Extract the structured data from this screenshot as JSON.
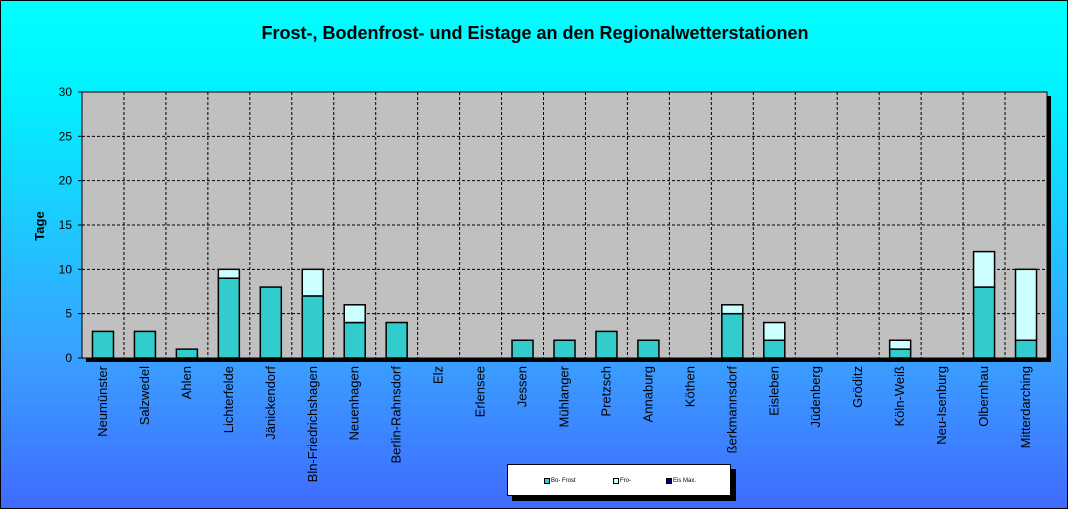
{
  "chart_data": {
    "type": "bar",
    "stacked": true,
    "title": "Frost-, Bodenfrost- und Eistage an den Regionalwetterstationen",
    "ylabel": "Tage",
    "xlabel": "",
    "ylim": [
      0,
      30
    ],
    "yticks": [
      "0",
      "5",
      "10",
      "15",
      "20",
      "25",
      "30"
    ],
    "grid": true,
    "legend_position": "bottom-center",
    "categories": [
      "Neumünster",
      "Salzwedel",
      "Ahlen",
      "Lichterfelde",
      "Jänickendorf",
      "Bln-Friedrichshagen",
      "Neuenhagen",
      "Berlin-Rahnsdorf",
      "Elz",
      "Erlensee",
      "Jessen",
      "Mühlanger",
      "Pretzsch",
      "Annaburg",
      "Köthen",
      "ßerkmannsdorf",
      "Eisleben",
      "Jüdenberg",
      "Gröditz",
      "Köln-Weiß",
      "Neu-Isenburg",
      "Olbernhau",
      "Mitterdarching"
    ],
    "series": [
      {
        "name": "Bo- Frost",
        "color": "#33cccc",
        "values": [
          3,
          3,
          1,
          9,
          8,
          7,
          4,
          4,
          0,
          0,
          2,
          2,
          3,
          2,
          0,
          5,
          2,
          0,
          0,
          1,
          0,
          8,
          2
        ]
      },
      {
        "name": "Fro-",
        "color": "#ccffff",
        "values": [
          0,
          0,
          0,
          1,
          0,
          3,
          2,
          0,
          0,
          0,
          0,
          0,
          0,
          0,
          0,
          1,
          2,
          0,
          0,
          1,
          0,
          4,
          8
        ]
      },
      {
        "name": "Eis Max.",
        "color": "#000080",
        "values": [
          0,
          0,
          0,
          0,
          0,
          0,
          0,
          0,
          0,
          0,
          0,
          0,
          0,
          0,
          0,
          0,
          0,
          0,
          0,
          0,
          0,
          0,
          0
        ]
      }
    ],
    "plot_background": "#c0c0c0"
  }
}
